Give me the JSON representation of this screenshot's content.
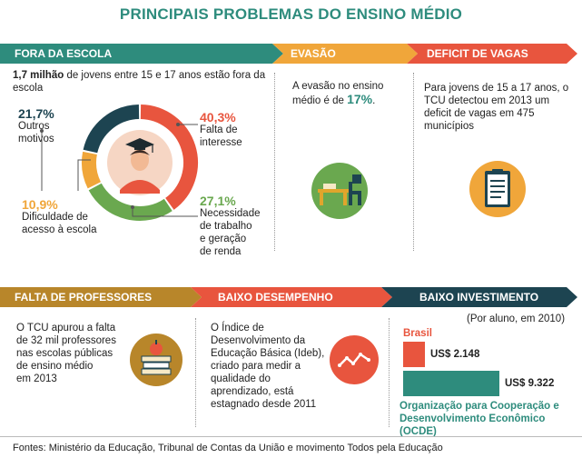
{
  "title": "PRINCIPAIS PROBLEMAS DO ENSINO MÉDIO",
  "sections": {
    "fora_da_escola": {
      "label": "FORA DA ESCOLA",
      "intro_bold": "1,7 milhão",
      "intro_rest": " de jovens entre 15 e 17 anos estão fora da escola",
      "items": [
        {
          "pct": "40,3%",
          "label_1": "Falta de",
          "label_2": "interesse",
          "value": 40.3,
          "color": "#e8553e"
        },
        {
          "pct": "27,1%",
          "label_1": "Necessidade",
          "label_2": "de trabalho",
          "label_3": "e geração",
          "label_4": "de renda",
          "value": 27.1,
          "color": "#6aa84f"
        },
        {
          "pct": "10,9%",
          "label_1": "Dificuldade de",
          "label_2": "acesso à escola",
          "value": 10.9,
          "color": "#f0a63a"
        },
        {
          "pct": "21,7%",
          "label_1": "Outros",
          "label_2": "motivos",
          "value": 21.7,
          "color": "#1d4451"
        }
      ]
    },
    "evasao": {
      "label": "EVASÃO",
      "text_1": "A evasão no ensino",
      "text_2": "médio é de",
      "value": "17%",
      "text_end": "."
    },
    "deficit": {
      "label": "DEFICIT DE VAGAS",
      "text_1": "Para jovens de 15 a 17 anos, o",
      "text_2": "TCU detectou em 2013 um",
      "text_3": "deficit de vagas em 475",
      "text_4": "municípios"
    },
    "professores": {
      "label": "FALTA DE PROFESSORES",
      "text_1": "O TCU apurou a falta",
      "text_2": "de 32 mil professores",
      "text_3": "nas escolas públicas",
      "text_4": "de ensino médio",
      "text_5": "em 2013"
    },
    "desempenho": {
      "label": "BAIXO DESEMPENHO",
      "text_1": "O Índice de",
      "text_2": "Desenvolvimento da",
      "text_3": "Educação Básica (Ideb),",
      "text_4": "criado para medir a",
      "text_5": "qualidade do",
      "text_6": "aprendizado, está",
      "text_7": "estagnado desde 2011"
    },
    "investimento": {
      "label": "BAIXO INVESTIMENTO",
      "subtitle": "(Por aluno, em 2010)",
      "bars": [
        {
          "name": "Brasil",
          "value_label": "US$ 2.148",
          "value": 2148,
          "color": "#e8553e"
        },
        {
          "name": "Organização para Cooperação e",
          "name_2": "Desenvolvimento Econômico (OCDE)",
          "value_label": "US$ 9.322",
          "value": 9322,
          "color": "#2e8c7d"
        }
      ]
    }
  },
  "colors": {
    "teal": "#2e8c7d",
    "orange": "#f0a63a",
    "red": "#e8553e",
    "navy": "#1d4451",
    "brown": "#b8862a"
  },
  "footer": "Fontes: Ministério da Educação, Tribunal de Contas da União e movimento Todos pela Educação"
}
